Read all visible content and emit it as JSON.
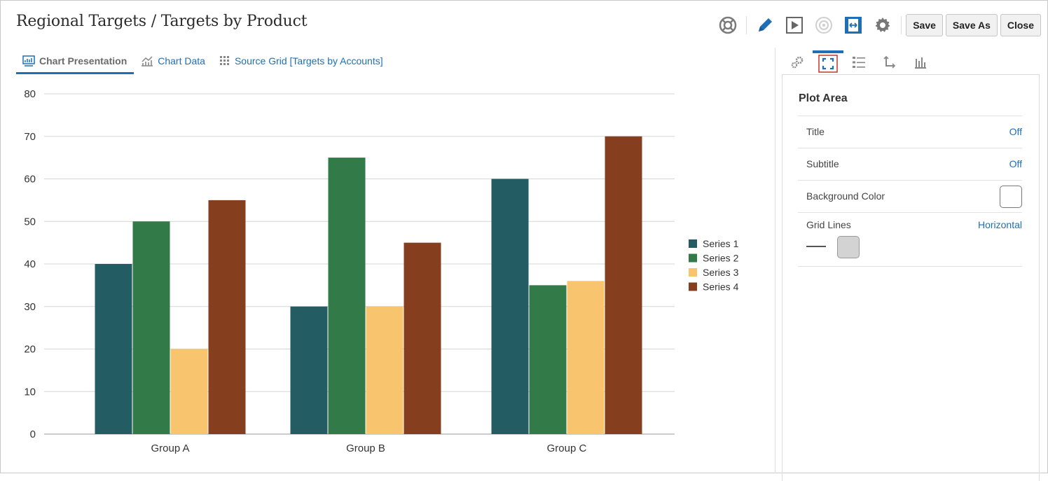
{
  "page": {
    "title": "Regional Targets / Targets by Product"
  },
  "toolbar": {
    "save_label": "Save",
    "save_as_label": "Save As",
    "close_label": "Close"
  },
  "tabs": [
    {
      "label": "Chart Presentation",
      "icon": "chart-presentation-icon"
    },
    {
      "label": "Chart Data",
      "icon": "chart-data-icon"
    },
    {
      "label": "Source Grid [Targets by Accounts]",
      "icon": "grid-icon"
    }
  ],
  "panel": {
    "title": "Plot Area",
    "rows": {
      "title": {
        "label": "Title",
        "value": "Off"
      },
      "subtitle": {
        "label": "Subtitle",
        "value": "Off"
      },
      "background": {
        "label": "Background Color",
        "color": "#ffffff"
      },
      "gridlines": {
        "label": "Grid Lines",
        "value": "Horizontal",
        "color": "#d3d3d3"
      }
    }
  },
  "colors": {
    "accent": "#1f6fb6",
    "active_panel_icon": "#c0392b"
  },
  "chart_data": {
    "type": "bar",
    "categories": [
      "Group A",
      "Group B",
      "Group C"
    ],
    "series": [
      {
        "name": "Series 1",
        "values": [
          40,
          30,
          60
        ],
        "color": "#245c64"
      },
      {
        "name": "Series 2",
        "values": [
          50,
          65,
          35
        ],
        "color": "#327a48"
      },
      {
        "name": "Series 3",
        "values": [
          20,
          30,
          36
        ],
        "color": "#f9c46e"
      },
      {
        "name": "Series 4",
        "values": [
          55,
          45,
          70
        ],
        "color": "#853f1e"
      }
    ],
    "ylim": [
      0,
      80
    ],
    "yticks": [
      0,
      10,
      20,
      30,
      40,
      50,
      60,
      70,
      80
    ],
    "grid": "horizontal",
    "legend": "right"
  }
}
